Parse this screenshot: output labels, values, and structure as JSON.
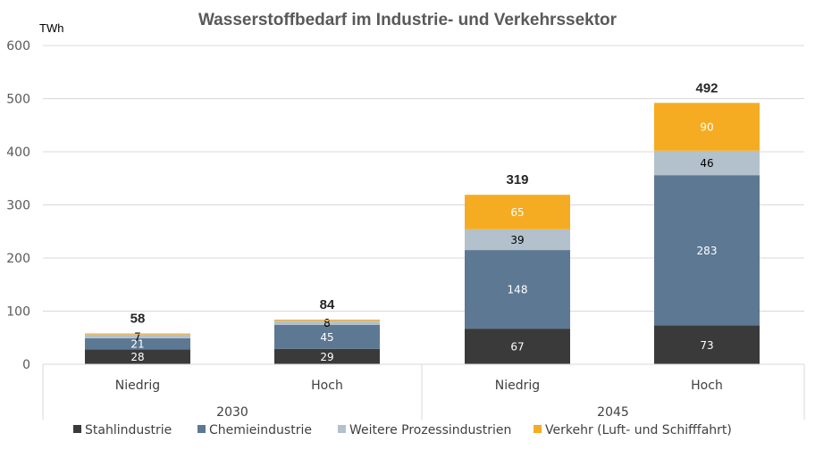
{
  "chart_data": {
    "type": "bar",
    "stacked": true,
    "title": "Wasserstoffbedarf im Industrie- und Verkehrssektor",
    "ylabel": "TWh",
    "ylim": [
      0,
      600
    ],
    "yticks": [
      0,
      100,
      200,
      300,
      400,
      500,
      600
    ],
    "grid": true,
    "legend_position": "bottom",
    "groups": [
      {
        "label": "2030",
        "categories": [
          "Niedrig",
          "Hoch"
        ]
      },
      {
        "label": "2045",
        "categories": [
          "Niedrig",
          "Hoch"
        ]
      }
    ],
    "categories": [
      "Niedrig",
      "Hoch",
      "Niedrig",
      "Hoch"
    ],
    "series": [
      {
        "name": "Stahlindustrie",
        "color": "#3a3a3a",
        "text_color": "#ffffff",
        "values": [
          28,
          29,
          67,
          73
        ],
        "labels": [
          "28",
          "29",
          "67",
          "73"
        ]
      },
      {
        "name": "Chemieindustrie",
        "color": "#5d7893",
        "text_color": "#ffffff",
        "values": [
          21,
          45,
          148,
          283
        ],
        "labels": [
          "21",
          "45",
          "148",
          "283"
        ]
      },
      {
        "name": "Weitere Prozessindustrien",
        "color": "#b3c1cc",
        "text_color": "#000000",
        "values": [
          7,
          8,
          39,
          46
        ],
        "labels": [
          "7",
          "8",
          "39",
          "46"
        ]
      },
      {
        "name": "Verkehr (Luft- und Schifffahrt)",
        "color": "#f5ac23",
        "text_color": "#ffffff",
        "values": [
          2,
          2,
          65,
          90
        ],
        "labels": [
          "",
          "",
          "65",
          "90"
        ]
      }
    ],
    "totals": [
      "58",
      "84",
      "319",
      "492"
    ]
  }
}
